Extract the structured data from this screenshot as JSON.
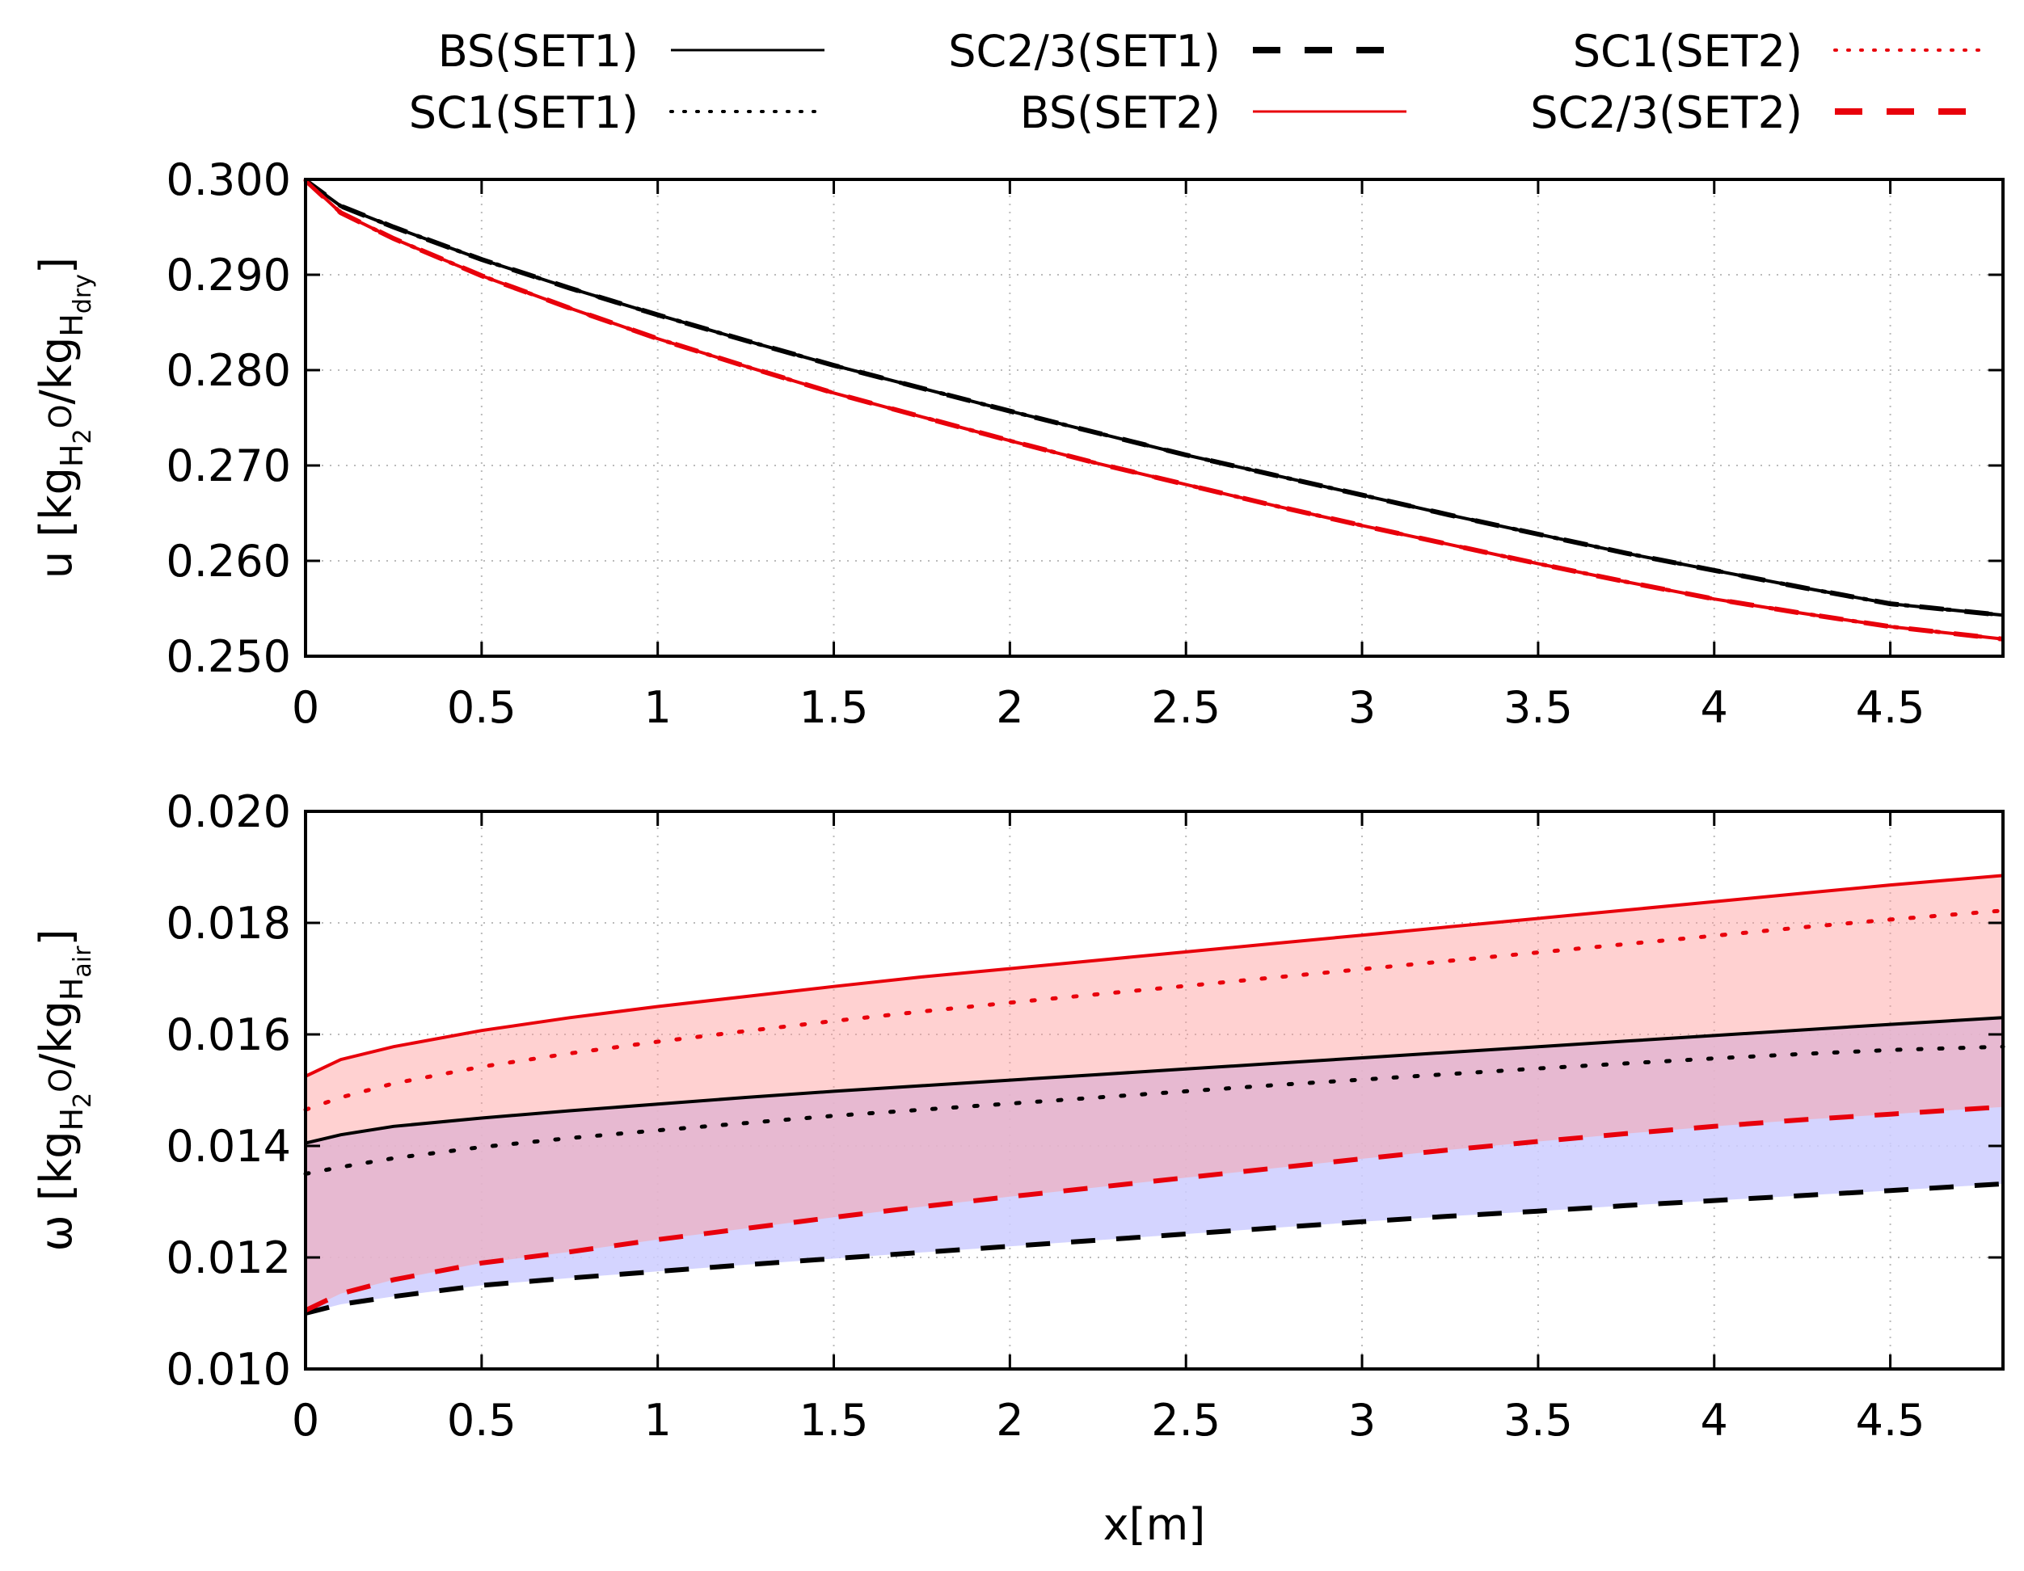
{
  "chart_data": [
    {
      "type": "line",
      "title": "",
      "ylabel": "u [kg_H2O/kg_H_dry]",
      "ylabel_parts": {
        "prefix": "u [kg",
        "sub1": "H",
        "sub1b": "2",
        "sub1c": "O",
        "mid": "/kg",
        "sub2": "H",
        "sub3": "dry",
        "suffix": "]"
      },
      "xlabel": "",
      "xlim": [
        0,
        4.82
      ],
      "ylim": [
        0.25,
        0.3
      ],
      "grid": true,
      "x_ticks": [
        0,
        0.5,
        1,
        1.5,
        2,
        2.5,
        3,
        3.5,
        4,
        4.5
      ],
      "x_tick_labels": [
        "0",
        "0.5",
        "1",
        "1.5",
        "2",
        "2.5",
        "3",
        "3.5",
        "4",
        "4.5"
      ],
      "y_ticks": [
        0.25,
        0.26,
        0.27,
        0.28,
        0.29,
        0.3
      ],
      "y_tick_labels": [
        "0.250",
        "0.260",
        "0.270",
        "0.280",
        "0.290",
        "0.300"
      ],
      "x": [
        0,
        0.1,
        0.25,
        0.5,
        0.75,
        1,
        1.25,
        1.5,
        1.75,
        2,
        2.25,
        2.5,
        2.75,
        3,
        3.25,
        3.5,
        3.75,
        4,
        4.25,
        4.5,
        4.82
      ],
      "series": [
        {
          "name": "BS(SET1)",
          "color": "#000000",
          "style": "solid",
          "values": [
            0.2999,
            0.2972,
            0.295,
            0.2916,
            0.2886,
            0.2858,
            0.2831,
            0.2805,
            0.2781,
            0.2757,
            0.2734,
            0.2711,
            0.269,
            0.2669,
            0.2648,
            0.2628,
            0.2608,
            0.259,
            0.2572,
            0.2555,
            0.2543
          ]
        },
        {
          "name": "SC1(SET1)",
          "color": "#000000",
          "style": "dotted",
          "values": [
            0.2999,
            0.2972,
            0.295,
            0.2916,
            0.2886,
            0.2858,
            0.2831,
            0.2805,
            0.2781,
            0.2757,
            0.2734,
            0.2711,
            0.269,
            0.2669,
            0.2648,
            0.2628,
            0.2608,
            0.259,
            0.2572,
            0.2555,
            0.2543
          ]
        },
        {
          "name": "SC2/3(SET1)",
          "color": "#000000",
          "style": "dashed",
          "values": [
            0.2999,
            0.2972,
            0.295,
            0.2916,
            0.2886,
            0.2858,
            0.2831,
            0.2805,
            0.2781,
            0.2757,
            0.2734,
            0.2711,
            0.269,
            0.2669,
            0.2648,
            0.2628,
            0.2608,
            0.259,
            0.2572,
            0.2555,
            0.2543
          ]
        },
        {
          "name": "BS(SET2)",
          "color": "#e8000b",
          "style": "solid",
          "values": [
            0.2999,
            0.2965,
            0.2938,
            0.2899,
            0.2865,
            0.2833,
            0.2804,
            0.2776,
            0.2751,
            0.2726,
            0.2702,
            0.268,
            0.2658,
            0.2637,
            0.2617,
            0.2597,
            0.2578,
            0.256,
            0.2545,
            0.2531,
            0.2518
          ]
        },
        {
          "name": "SC1(SET2)",
          "color": "#e8000b",
          "style": "dotted",
          "values": [
            0.2999,
            0.2965,
            0.2938,
            0.2899,
            0.2865,
            0.2833,
            0.2804,
            0.2776,
            0.2751,
            0.2726,
            0.2702,
            0.268,
            0.2658,
            0.2637,
            0.2617,
            0.2597,
            0.2578,
            0.256,
            0.2545,
            0.2531,
            0.2518
          ]
        },
        {
          "name": "SC2/3(SET2)",
          "color": "#e8000b",
          "style": "dashed",
          "values": [
            0.2999,
            0.2965,
            0.2938,
            0.2899,
            0.2865,
            0.2833,
            0.2804,
            0.2776,
            0.2751,
            0.2726,
            0.2702,
            0.268,
            0.2658,
            0.2637,
            0.2617,
            0.2597,
            0.2578,
            0.256,
            0.2545,
            0.2531,
            0.2518
          ]
        }
      ]
    },
    {
      "type": "area",
      "title": "",
      "ylabel": "ω [kg_H2O/kg_H_air]",
      "ylabel_parts": {
        "prefix": "ω [kg",
        "sub1": "H",
        "sub1b": "2",
        "sub1c": "O",
        "mid": "/kg",
        "sub2": "H",
        "sub3": "air",
        "suffix": "]"
      },
      "xlabel": "x[m]",
      "xlim": [
        0,
        4.82
      ],
      "ylim": [
        0.01,
        0.02
      ],
      "grid": true,
      "x_ticks": [
        0,
        0.5,
        1,
        1.5,
        2,
        2.5,
        3,
        3.5,
        4,
        4.5
      ],
      "x_tick_labels": [
        "0",
        "0.5",
        "1",
        "1.5",
        "2",
        "2.5",
        "3",
        "3.5",
        "4",
        "4.5"
      ],
      "y_ticks": [
        0.01,
        0.012,
        0.014,
        0.016,
        0.018,
        0.02
      ],
      "y_tick_labels": [
        "0.010",
        "0.012",
        "0.014",
        "0.016",
        "0.018",
        "0.020"
      ],
      "x": [
        0,
        0.1,
        0.25,
        0.5,
        0.75,
        1,
        1.25,
        1.5,
        1.75,
        2,
        2.25,
        2.5,
        2.75,
        3,
        3.25,
        3.5,
        3.75,
        4,
        4.25,
        4.5,
        4.82
      ],
      "bands": [
        {
          "name": "SET1 band",
          "color": "#ccccff",
          "upper": "BS(SET1)",
          "lower": "SC2/3(SET1)"
        },
        {
          "name": "SET2 band",
          "color": "#ff9999",
          "upper": "BS(SET2)",
          "lower": "SC2/3(SET2)"
        }
      ],
      "series": [
        {
          "name": "BS(SET1)",
          "color": "#000000",
          "style": "solid",
          "values": [
            0.01405,
            0.0142,
            0.01435,
            0.0145,
            0.01463,
            0.01475,
            0.01487,
            0.01498,
            0.01508,
            0.01518,
            0.01528,
            0.01538,
            0.01548,
            0.01558,
            0.01568,
            0.01578,
            0.01588,
            0.01598,
            0.01608,
            0.01618,
            0.0163
          ]
        },
        {
          "name": "SC1(SET1)",
          "color": "#000000",
          "style": "dotted",
          "values": [
            0.0135,
            0.01362,
            0.01378,
            0.01398,
            0.01414,
            0.01428,
            0.01441,
            0.01454,
            0.01465,
            0.01476,
            0.01487,
            0.01498,
            0.01509,
            0.01519,
            0.01529,
            0.01539,
            0.01548,
            0.01557,
            0.01565,
            0.01572,
            0.01578
          ]
        },
        {
          "name": "SC2/3(SET1)",
          "color": "#000000",
          "style": "dashed",
          "values": [
            0.011,
            0.01116,
            0.0113,
            0.0115,
            0.01163,
            0.01175,
            0.01187,
            0.01198,
            0.01209,
            0.0122,
            0.01231,
            0.01242,
            0.01253,
            0.01264,
            0.01274,
            0.01283,
            0.01293,
            0.01302,
            0.01311,
            0.0132,
            0.01332
          ]
        },
        {
          "name": "BS(SET2)",
          "color": "#e8000b",
          "style": "solid",
          "values": [
            0.01525,
            0.01555,
            0.01578,
            0.01607,
            0.0163,
            0.0165,
            0.01668,
            0.01686,
            0.01703,
            0.01718,
            0.01733,
            0.01748,
            0.01763,
            0.01778,
            0.01793,
            0.01808,
            0.01823,
            0.01838,
            0.01853,
            0.01868,
            0.01885
          ]
        },
        {
          "name": "SC1(SET2)",
          "color": "#e8000b",
          "style": "dotted",
          "values": [
            0.01465,
            0.01487,
            0.01512,
            0.01542,
            0.01566,
            0.01587,
            0.01606,
            0.01624,
            0.01641,
            0.01657,
            0.01672,
            0.01687,
            0.01702,
            0.01717,
            0.01732,
            0.01747,
            0.01762,
            0.01777,
            0.01792,
            0.01806,
            0.01822
          ]
        },
        {
          "name": "SC2/3(SET2)",
          "color": "#e8000b",
          "style": "dashed",
          "values": [
            0.01105,
            0.01135,
            0.0116,
            0.0119,
            0.0121,
            0.01232,
            0.01252,
            0.01272,
            0.01291,
            0.01309,
            0.01326,
            0.01343,
            0.0136,
            0.01377,
            0.01393,
            0.01408,
            0.01422,
            0.01435,
            0.01447,
            0.01457,
            0.0147
          ]
        }
      ]
    }
  ],
  "legend": {
    "placement": "top",
    "entries": [
      {
        "label": "BS(SET1)",
        "color": "#000000",
        "style": "solid"
      },
      {
        "label": "SC1(SET1)",
        "color": "#000000",
        "style": "dotted"
      },
      {
        "label": "SC2/3(SET1)",
        "color": "#000000",
        "style": "dashed"
      },
      {
        "label": "BS(SET2)",
        "color": "#e8000b",
        "style": "solid"
      },
      {
        "label": "SC1(SET2)",
        "color": "#e8000b",
        "style": "dotted"
      },
      {
        "label": "SC2/3(SET2)",
        "color": "#e8000b",
        "style": "dashed"
      }
    ]
  }
}
